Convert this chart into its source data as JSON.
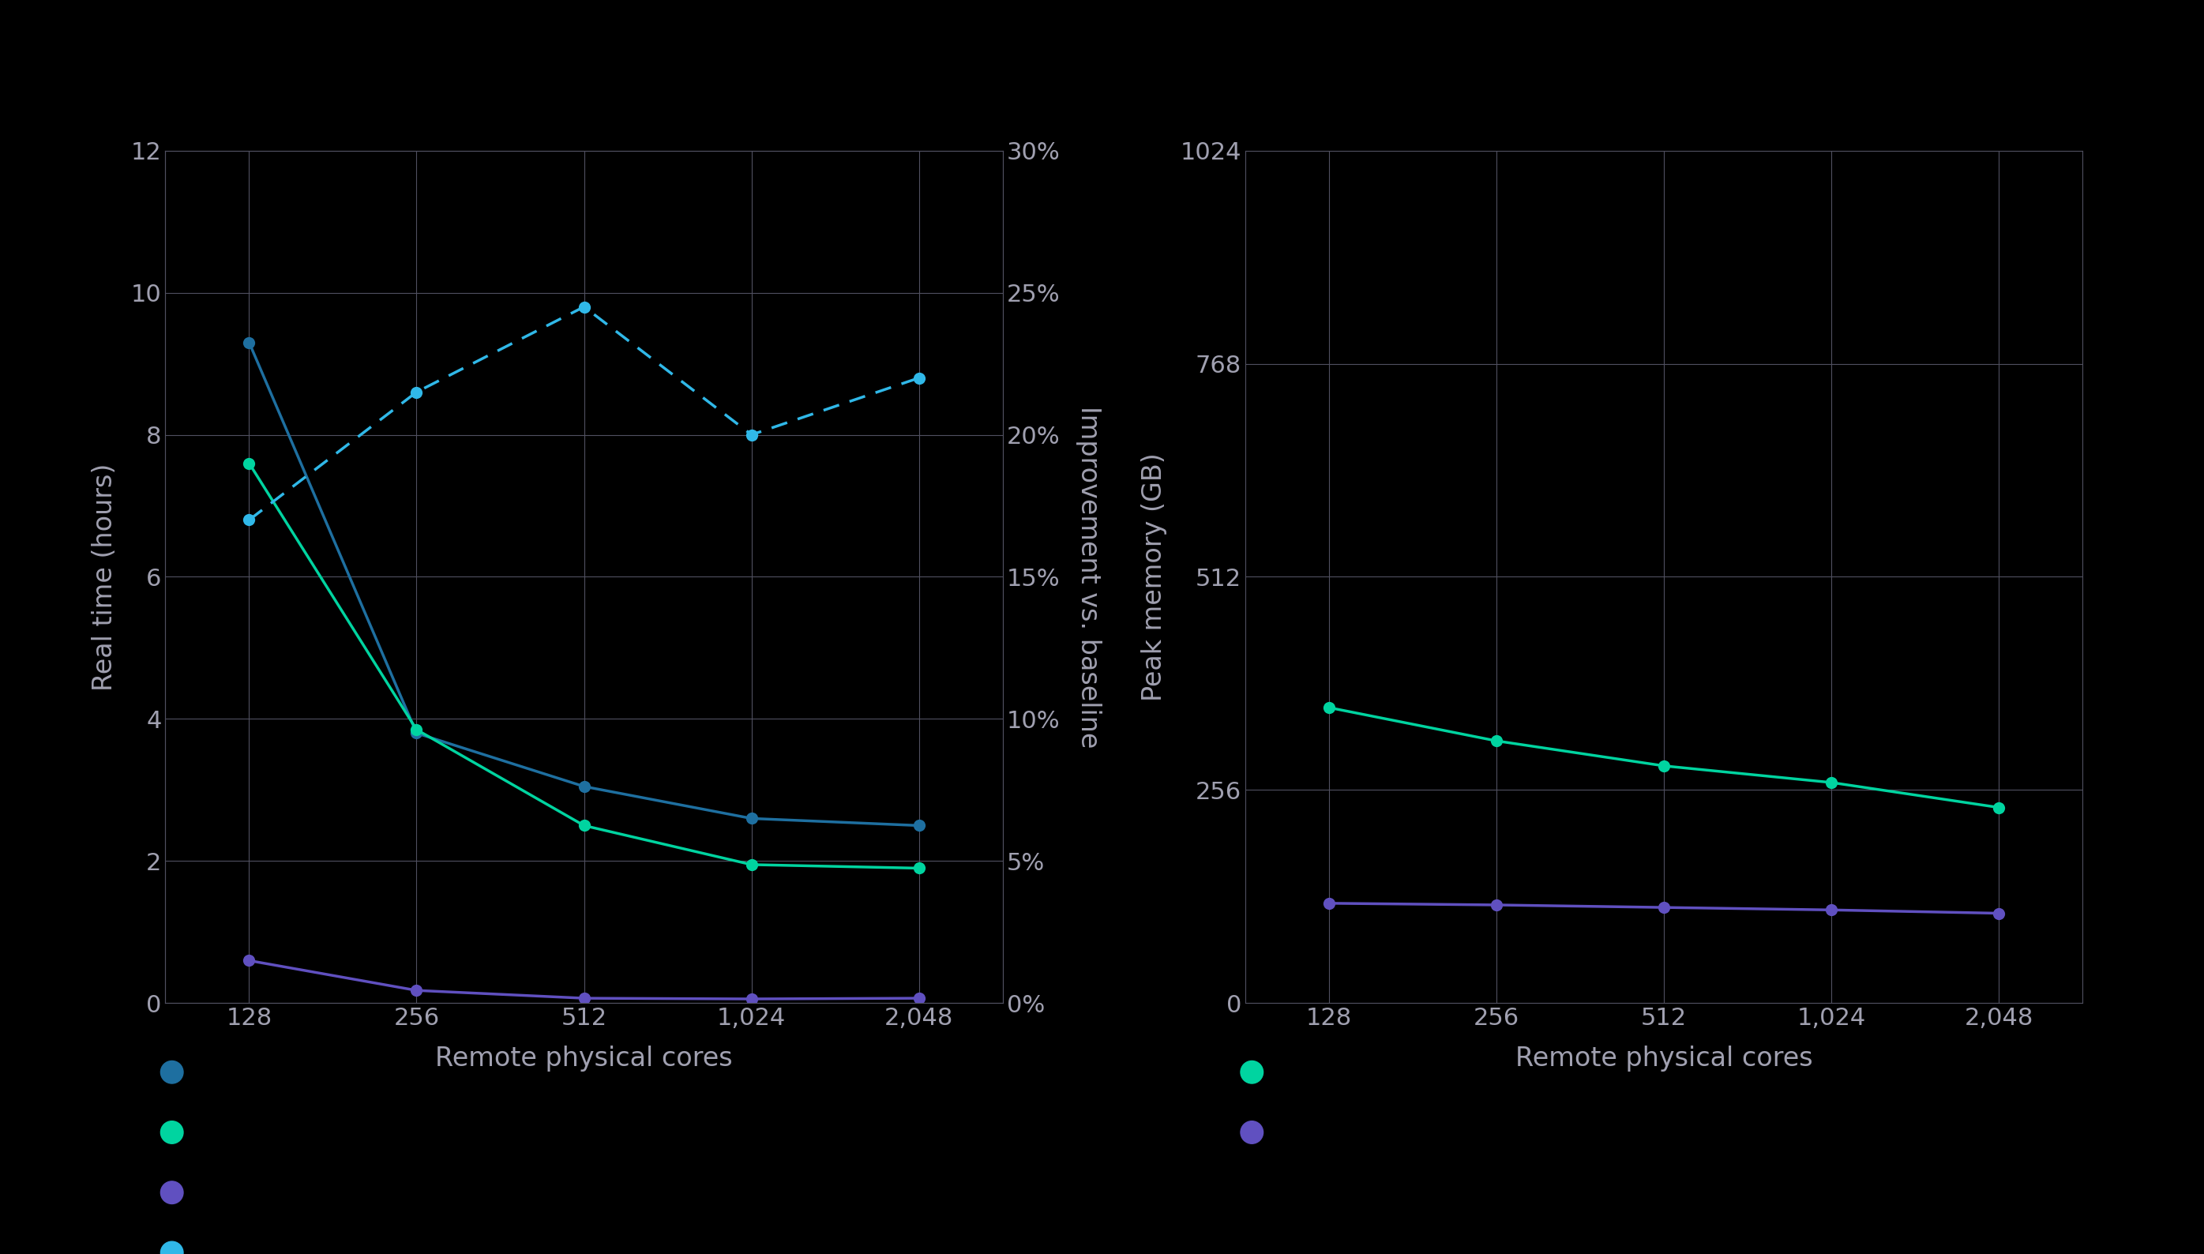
{
  "background_color": "#000000",
  "grid_color": "#505060",
  "text_color": "#a0a0b0",
  "x_cores": [
    0,
    1,
    2,
    3,
    4
  ],
  "x_labels": [
    "128",
    "256",
    "512",
    "1,024",
    "2,048"
  ],
  "left_chart": {
    "y1_label": "Real time (hours)",
    "y2_label": "Improvement vs. baseline",
    "xlabel": "Remote physical cores",
    "ylim_left": [
      0,
      12
    ],
    "ylim_right": [
      0,
      0.3
    ],
    "yticks_left": [
      0,
      2,
      4,
      6,
      8,
      10,
      12
    ],
    "yticks_right": [
      0.0,
      0.05,
      0.1,
      0.15,
      0.2,
      0.25,
      0.3
    ],
    "ytick_labels_right": [
      "0%",
      "5%",
      "10%",
      "15%",
      "20%",
      "25%",
      "30%"
    ],
    "line_dark_teal": [
      9.3,
      3.8,
      3.05,
      2.6,
      2.5
    ],
    "line_cyan": [
      7.6,
      3.85,
      2.5,
      1.95,
      1.9
    ],
    "line_purple": [
      0.6,
      0.18,
      0.07,
      0.06,
      0.07
    ],
    "line_dashed_blue": [
      0.17,
      0.215,
      0.245,
      0.2,
      0.22
    ],
    "color_dark_teal": "#1e6fa0",
    "color_cyan": "#00d4a0",
    "color_purple": "#6050c0",
    "color_dashed_blue": "#30b8e8"
  },
  "right_chart": {
    "y_label": "Peak memory (GB)",
    "xlabel": "Remote physical cores",
    "ylim": [
      0,
      1024
    ],
    "yticks": [
      0,
      256,
      512,
      768,
      1024
    ],
    "line_teal": [
      355,
      315,
      285,
      265,
      235
    ],
    "line_purple": [
      120,
      118,
      115,
      112,
      108
    ],
    "color_teal": "#00d4a0",
    "color_purple": "#6050c0"
  }
}
